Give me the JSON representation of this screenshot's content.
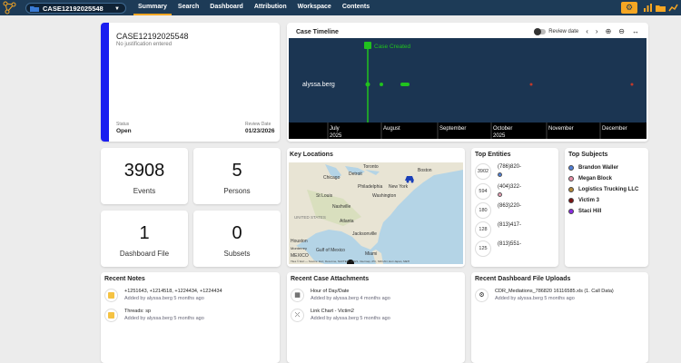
{
  "topbar": {
    "case_selector": "CASE12192025548",
    "nav": [
      "Summary",
      "Search",
      "Dashboard",
      "Attribution",
      "Workspace",
      "Contents"
    ],
    "active_nav": "Summary"
  },
  "case_header": {
    "title": "CASE12192025548",
    "justification": "No justification entered",
    "status_label": "Status",
    "status_value": "Open",
    "review_label": "Review Date",
    "review_value": "01/23/2026",
    "accent_color": "#1a1ef0"
  },
  "timeline": {
    "title": "Case Timeline",
    "review_toggle": "Review date",
    "user": "alyssa.berg",
    "marker_label": "Case Created",
    "months": [
      "July",
      "August",
      "September",
      "October",
      "November",
      "December"
    ],
    "years": [
      "2025",
      "2025"
    ],
    "background": "#1b3552"
  },
  "stats": {
    "events": {
      "value": "3908",
      "label": "Events"
    },
    "persons": {
      "value": "5",
      "label": "Persons"
    },
    "dashboard_file": {
      "value": "1",
      "label": "Dashboard File"
    },
    "subsets": {
      "value": "0",
      "label": "Subsets"
    }
  },
  "map": {
    "title": "Key Locations",
    "cities": [
      "Chicago",
      "Detroit",
      "Toronto",
      "Boston",
      "New York",
      "Philadelphia",
      "Washington",
      "St Louis",
      "Nashville",
      "Atlanta",
      "Jacksonville",
      "Houston",
      "Gulf of Mexico",
      "Miami",
      "UNITED STATES",
      "MEXICO",
      "Monterrey"
    ],
    "attribution": "Tiles © Esri — Source: Esri, DeLorme, NAVTEQ, USGS, Intermap, iPC, NRCAN, Esri Japan, METI"
  },
  "top_entities": {
    "title": "Top Entities",
    "items": [
      {
        "count": "3902",
        "label": "(786)820-"
      },
      {
        "count": "594",
        "label": "(404)322-"
      },
      {
        "count": "180",
        "label": "(863)220-"
      },
      {
        "count": "128",
        "label": "(813)417-"
      },
      {
        "count": "125",
        "label": "(813)551-"
      }
    ]
  },
  "top_subjects": {
    "title": "Top Subjects",
    "items": [
      {
        "name": "Brandon Waller",
        "color": "#4f7fd6"
      },
      {
        "name": "Megan Block",
        "color": "#e58fa6"
      },
      {
        "name": "Logistics Trucking LLC",
        "color": "#b48a3a"
      },
      {
        "name": "Victim 3",
        "color": "#7a1414"
      },
      {
        "name": "Staci Hill",
        "color": "#8a2be2"
      }
    ]
  },
  "recent_notes": {
    "title": "Recent Notes",
    "items": [
      {
        "text": "+1251643, +1214518, +1224434, +1224434",
        "meta": "Added by alyssa.berg 5 months ago"
      },
      {
        "text": "Threads: sp",
        "meta": "Added by alyssa.berg 5 months ago"
      }
    ]
  },
  "recent_attachments": {
    "title": "Recent Case Attachments",
    "items": [
      {
        "text": "Hour of Day/Date",
        "meta": "Added by alyssa.berg 4 months ago"
      },
      {
        "text": "Link Chart - Victim2",
        "meta": "Added by alyssa.berg 5 months ago"
      }
    ]
  },
  "recent_uploads": {
    "title": "Recent Dashboard File Uploads",
    "items": [
      {
        "text": "CDR_Mediations_786820 16116585.xls (1. Call Data)",
        "meta": "Added by alyssa.berg 5 months ago"
      }
    ]
  }
}
